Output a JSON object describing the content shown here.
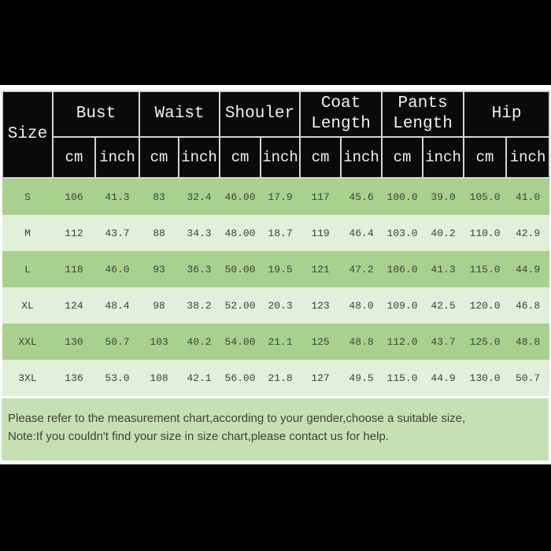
{
  "colors": {
    "header_bg": "#0a0a0a",
    "header_text": "#f1f1f1",
    "row_dark_green": "#a9d18e",
    "row_light_green": "#e2efda",
    "footer_band_green": "#c6e0b4",
    "data_text": "#3f3f3f",
    "band_black": "#020202"
  },
  "table": {
    "size_header": "Size",
    "unit_cm": "cm",
    "unit_inch": "inch",
    "groups": [
      "Bust",
      "Waist",
      "Shouler",
      "Coat Length",
      "Pants Length",
      "Hip"
    ],
    "rows": [
      {
        "size": "S",
        "values": [
          "106",
          "41.3",
          "83",
          "32.4",
          "46.00",
          "17.9",
          "117",
          "45.6",
          "100.0",
          "39.0",
          "105.0",
          "41.0"
        ]
      },
      {
        "size": "M",
        "values": [
          "112",
          "43.7",
          "88",
          "34.3",
          "48.00",
          "18.7",
          "119",
          "46.4",
          "103.0",
          "40.2",
          "110.0",
          "42.9"
        ]
      },
      {
        "size": "L",
        "values": [
          "118",
          "46.0",
          "93",
          "36.3",
          "50.00",
          "19.5",
          "121",
          "47.2",
          "106.0",
          "41.3",
          "115.0",
          "44.9"
        ]
      },
      {
        "size": "XL",
        "values": [
          "124",
          "48.4",
          "98",
          "38.2",
          "52.00",
          "20.3",
          "123",
          "48.0",
          "109.0",
          "42.5",
          "120.0",
          "46.8"
        ]
      },
      {
        "size": "XXL",
        "values": [
          "130",
          "50.7",
          "103",
          "40.2",
          "54.00",
          "21.1",
          "125",
          "48.8",
          "112.0",
          "43.7",
          "125.0",
          "48.8"
        ]
      },
      {
        "size": "3XL",
        "values": [
          "136",
          "53.0",
          "108",
          "42.1",
          "56.00",
          "21.8",
          "127",
          "49.5",
          "115.0",
          "44.9",
          "130.0",
          "50.7"
        ]
      }
    ]
  },
  "footer": {
    "line1": "Please refer to the measurement chart,according to your gender,choose a suitable size,",
    "line2": "Note:If you couldn't find your size in size chart,please contact us for help."
  }
}
